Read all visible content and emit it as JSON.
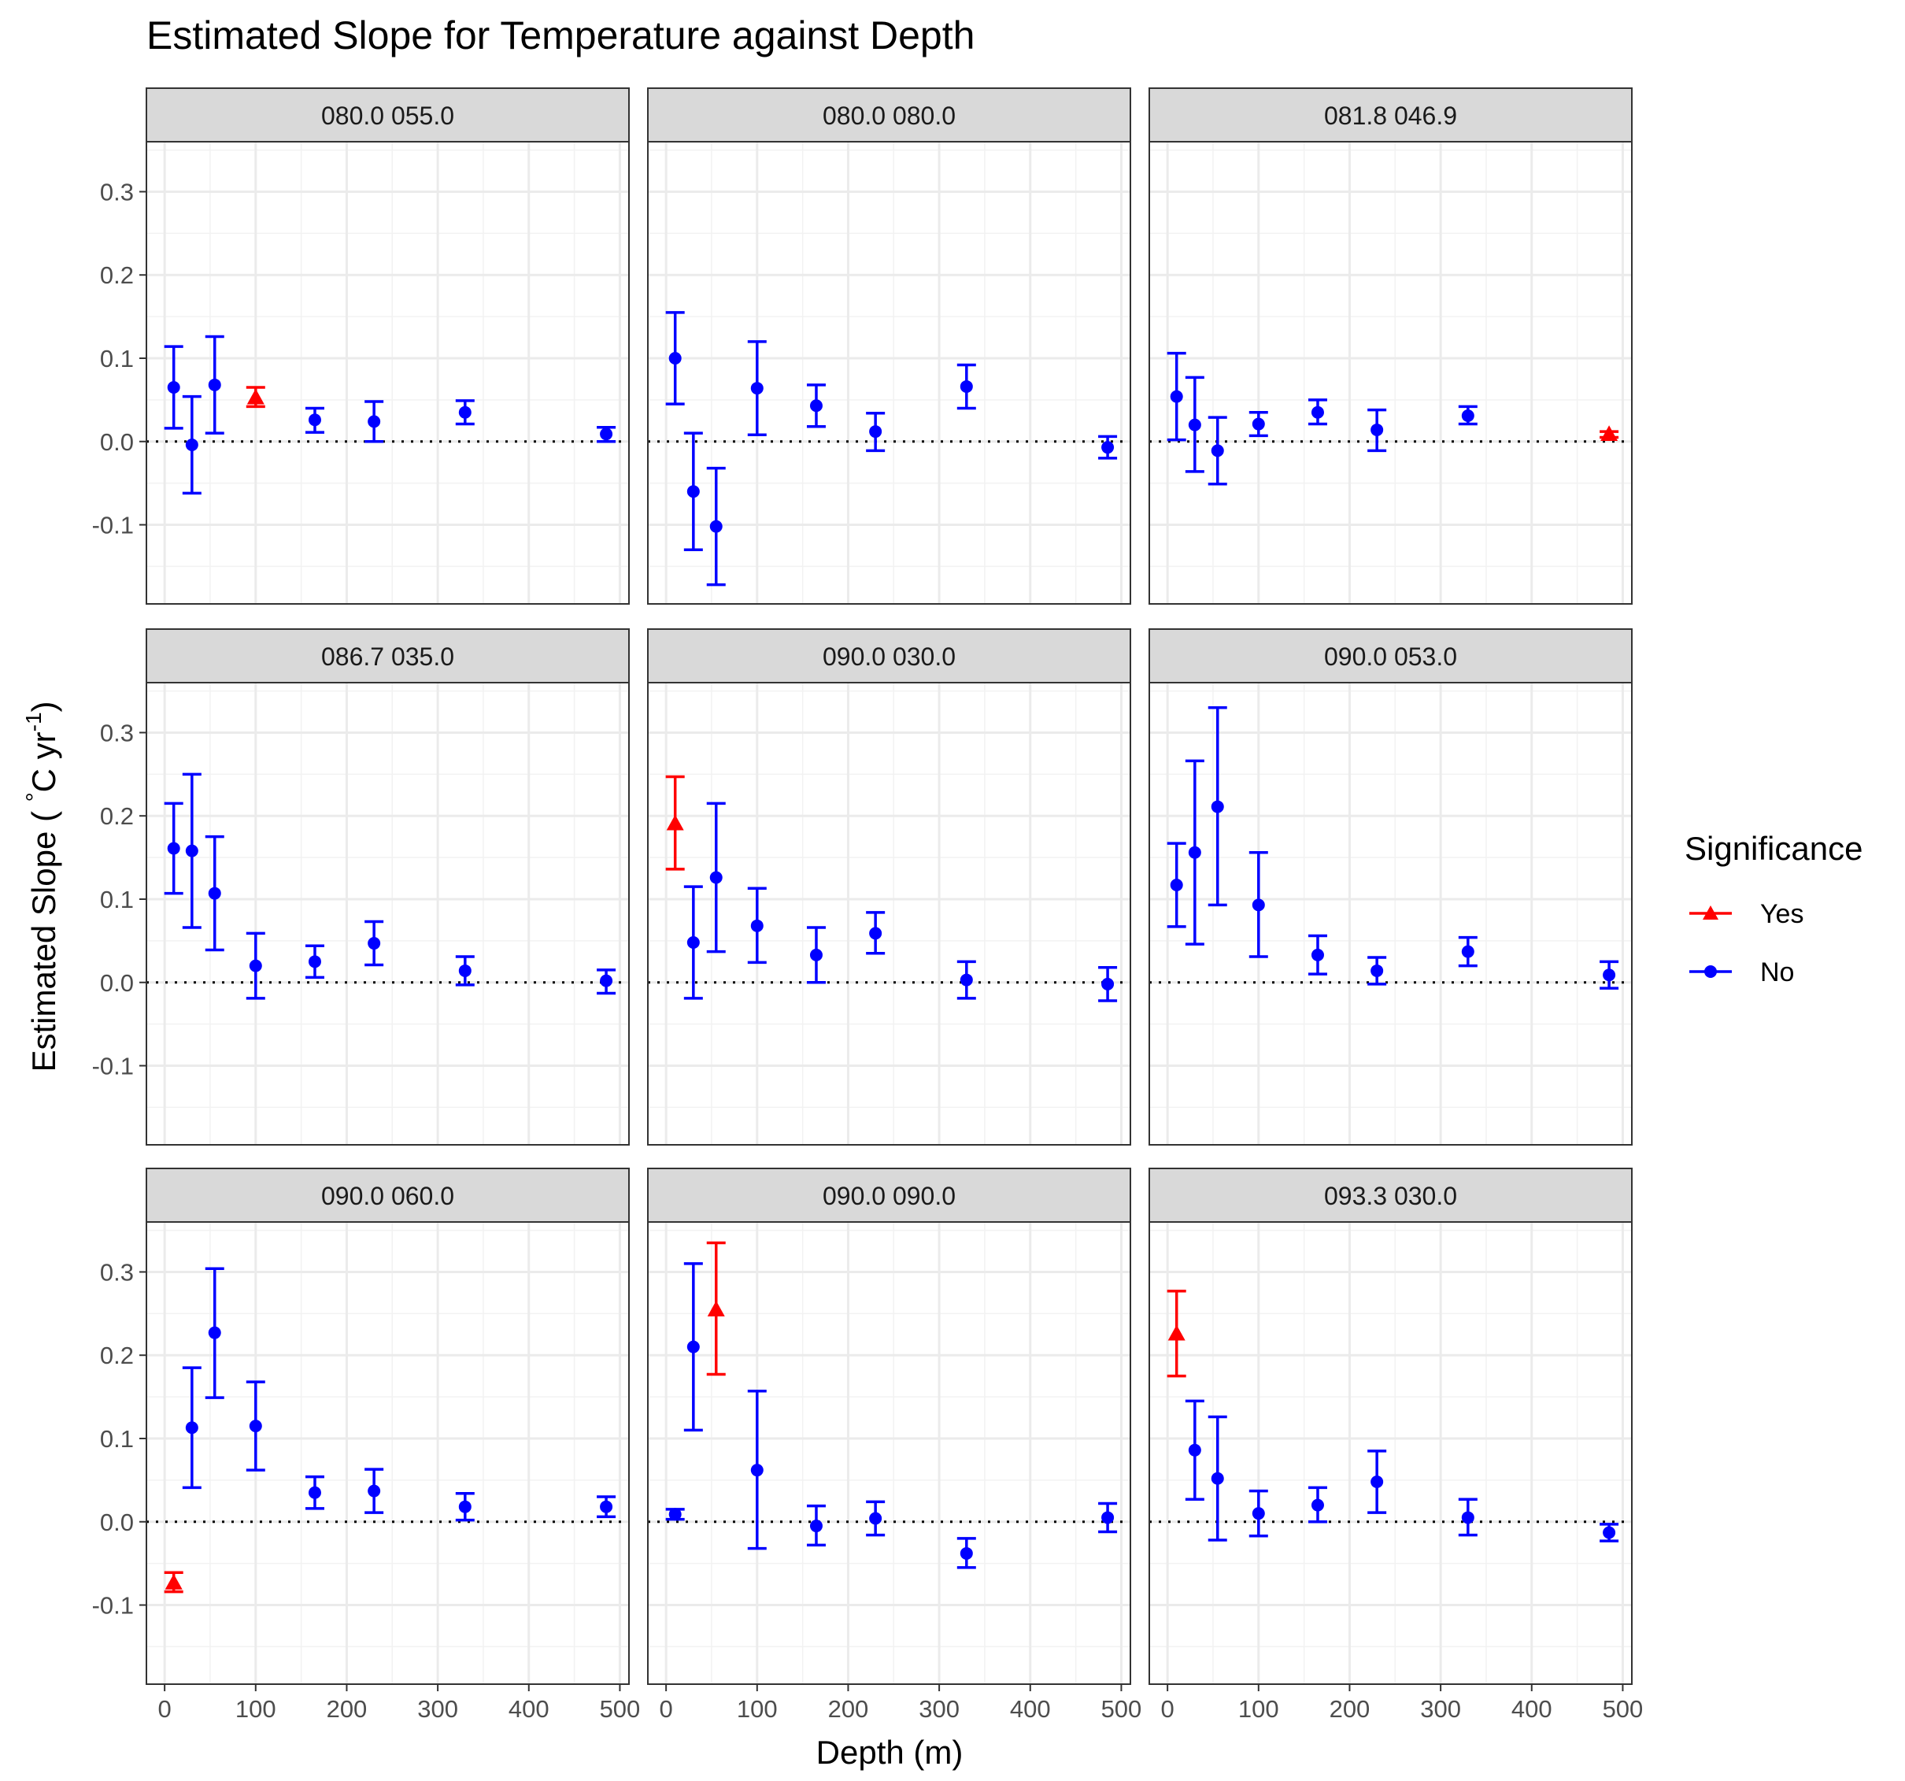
{
  "chart_data": {
    "type": "scatter",
    "title": "Estimated Slope for Temperature against Depth",
    "xlabel": "Depth (m)",
    "ylabel": {
      "main": "Estimated Slope ( ",
      "degree": "°",
      "unit_mid": "C yr",
      "superscript": "-1",
      "tail": ")"
    },
    "xlim": [
      -20,
      510
    ],
    "ylim": [
      -0.195,
      0.36
    ],
    "x_ticks": [
      0,
      100,
      200,
      300,
      400,
      500
    ],
    "x_tick_labels": [
      "0",
      "100",
      "200",
      "300",
      "400",
      "500"
    ],
    "y_ticks": [
      -0.1,
      0.0,
      0.1,
      0.2,
      0.3
    ],
    "y_tick_labels": [
      "-0.1",
      "0.0",
      "0.1",
      "0.2",
      "0.3"
    ],
    "reference_line": {
      "y": 0,
      "style": "dotted"
    },
    "grid": true,
    "legend": {
      "title": "Significance",
      "placement": "right",
      "entries": [
        {
          "label": "Yes",
          "color": "#ff0000",
          "shape": "triangle"
        },
        {
          "label": "No",
          "color": "#0000ff",
          "shape": "circle"
        }
      ]
    },
    "colors": {
      "Yes": "#ff0000",
      "No": "#0000ff"
    },
    "panels": [
      {
        "label": "080.0 055.0",
        "points": [
          {
            "x": 10,
            "y": 0.065,
            "lo": 0.016,
            "hi": 0.114,
            "sig": "No"
          },
          {
            "x": 30,
            "y": -0.004,
            "lo": -0.062,
            "hi": 0.054,
            "sig": "No"
          },
          {
            "x": 55,
            "y": 0.068,
            "lo": 0.01,
            "hi": 0.126,
            "sig": "No"
          },
          {
            "x": 100,
            "y": 0.053,
            "lo": 0.042,
            "hi": 0.065,
            "sig": "Yes"
          },
          {
            "x": 165,
            "y": 0.026,
            "lo": 0.011,
            "hi": 0.04,
            "sig": "No"
          },
          {
            "x": 230,
            "y": 0.024,
            "lo": 0.0,
            "hi": 0.048,
            "sig": "No"
          },
          {
            "x": 330,
            "y": 0.035,
            "lo": 0.021,
            "hi": 0.049,
            "sig": "No"
          },
          {
            "x": 485,
            "y": 0.009,
            "lo": 0.0,
            "hi": 0.017,
            "sig": "No"
          }
        ]
      },
      {
        "label": "080.0 080.0",
        "points": [
          {
            "x": 10,
            "y": 0.1,
            "lo": 0.045,
            "hi": 0.155,
            "sig": "No"
          },
          {
            "x": 30,
            "y": -0.06,
            "lo": -0.13,
            "hi": 0.01,
            "sig": "No"
          },
          {
            "x": 55,
            "y": -0.102,
            "lo": -0.172,
            "hi": -0.032,
            "sig": "No"
          },
          {
            "x": 100,
            "y": 0.064,
            "lo": 0.008,
            "hi": 0.12,
            "sig": "No"
          },
          {
            "x": 165,
            "y": 0.043,
            "lo": 0.018,
            "hi": 0.068,
            "sig": "No"
          },
          {
            "x": 230,
            "y": 0.012,
            "lo": -0.011,
            "hi": 0.034,
            "sig": "No"
          },
          {
            "x": 330,
            "y": 0.066,
            "lo": 0.04,
            "hi": 0.092,
            "sig": "No"
          },
          {
            "x": 485,
            "y": -0.007,
            "lo": -0.02,
            "hi": 0.006,
            "sig": "No"
          }
        ]
      },
      {
        "label": "081.8 046.9",
        "points": [
          {
            "x": 10,
            "y": 0.054,
            "lo": 0.002,
            "hi": 0.106,
            "sig": "No"
          },
          {
            "x": 30,
            "y": 0.02,
            "lo": -0.036,
            "hi": 0.077,
            "sig": "No"
          },
          {
            "x": 55,
            "y": -0.011,
            "lo": -0.051,
            "hi": 0.029,
            "sig": "No"
          },
          {
            "x": 100,
            "y": 0.021,
            "lo": 0.007,
            "hi": 0.035,
            "sig": "No"
          },
          {
            "x": 165,
            "y": 0.035,
            "lo": 0.021,
            "hi": 0.05,
            "sig": "No"
          },
          {
            "x": 230,
            "y": 0.014,
            "lo": -0.011,
            "hi": 0.038,
            "sig": "No"
          },
          {
            "x": 330,
            "y": 0.031,
            "lo": 0.021,
            "hi": 0.042,
            "sig": "No"
          },
          {
            "x": 485,
            "y": 0.009,
            "lo": 0.005,
            "hi": 0.012,
            "sig": "Yes"
          }
        ]
      },
      {
        "label": "086.7 035.0",
        "points": [
          {
            "x": 10,
            "y": 0.161,
            "lo": 0.107,
            "hi": 0.215,
            "sig": "No"
          },
          {
            "x": 30,
            "y": 0.158,
            "lo": 0.066,
            "hi": 0.25,
            "sig": "No"
          },
          {
            "x": 55,
            "y": 0.107,
            "lo": 0.039,
            "hi": 0.175,
            "sig": "No"
          },
          {
            "x": 100,
            "y": 0.02,
            "lo": -0.019,
            "hi": 0.059,
            "sig": "No"
          },
          {
            "x": 165,
            "y": 0.025,
            "lo": 0.006,
            "hi": 0.044,
            "sig": "No"
          },
          {
            "x": 230,
            "y": 0.047,
            "lo": 0.021,
            "hi": 0.073,
            "sig": "No"
          },
          {
            "x": 330,
            "y": 0.014,
            "lo": -0.003,
            "hi": 0.031,
            "sig": "No"
          },
          {
            "x": 485,
            "y": 0.002,
            "lo": -0.013,
            "hi": 0.015,
            "sig": "No"
          }
        ]
      },
      {
        "label": "090.0 030.0",
        "points": [
          {
            "x": 10,
            "y": 0.191,
            "lo": 0.136,
            "hi": 0.247,
            "sig": "Yes"
          },
          {
            "x": 30,
            "y": 0.048,
            "lo": -0.019,
            "hi": 0.115,
            "sig": "No"
          },
          {
            "x": 55,
            "y": 0.126,
            "lo": 0.037,
            "hi": 0.215,
            "sig": "No"
          },
          {
            "x": 100,
            "y": 0.068,
            "lo": 0.024,
            "hi": 0.113,
            "sig": "No"
          },
          {
            "x": 165,
            "y": 0.033,
            "lo": 0.0,
            "hi": 0.066,
            "sig": "No"
          },
          {
            "x": 230,
            "y": 0.059,
            "lo": 0.035,
            "hi": 0.084,
            "sig": "No"
          },
          {
            "x": 330,
            "y": 0.003,
            "lo": -0.019,
            "hi": 0.025,
            "sig": "No"
          },
          {
            "x": 485,
            "y": -0.002,
            "lo": -0.022,
            "hi": 0.018,
            "sig": "No"
          }
        ]
      },
      {
        "label": "090.0 053.0",
        "points": [
          {
            "x": 10,
            "y": 0.117,
            "lo": 0.067,
            "hi": 0.167,
            "sig": "No"
          },
          {
            "x": 30,
            "y": 0.156,
            "lo": 0.046,
            "hi": 0.266,
            "sig": "No"
          },
          {
            "x": 55,
            "y": 0.211,
            "lo": 0.093,
            "hi": 0.33,
            "sig": "No"
          },
          {
            "x": 100,
            "y": 0.093,
            "lo": 0.031,
            "hi": 0.156,
            "sig": "No"
          },
          {
            "x": 165,
            "y": 0.033,
            "lo": 0.01,
            "hi": 0.056,
            "sig": "No"
          },
          {
            "x": 230,
            "y": 0.014,
            "lo": -0.002,
            "hi": 0.03,
            "sig": "No"
          },
          {
            "x": 330,
            "y": 0.037,
            "lo": 0.02,
            "hi": 0.054,
            "sig": "No"
          },
          {
            "x": 485,
            "y": 0.009,
            "lo": -0.007,
            "hi": 0.025,
            "sig": "No"
          }
        ]
      },
      {
        "label": "090.0 060.0",
        "points": [
          {
            "x": 10,
            "y": -0.073,
            "lo": -0.084,
            "hi": -0.061,
            "sig": "Yes"
          },
          {
            "x": 30,
            "y": 0.113,
            "lo": 0.041,
            "hi": 0.185,
            "sig": "No"
          },
          {
            "x": 55,
            "y": 0.227,
            "lo": 0.149,
            "hi": 0.304,
            "sig": "No"
          },
          {
            "x": 100,
            "y": 0.115,
            "lo": 0.062,
            "hi": 0.168,
            "sig": "No"
          },
          {
            "x": 165,
            "y": 0.035,
            "lo": 0.016,
            "hi": 0.054,
            "sig": "No"
          },
          {
            "x": 230,
            "y": 0.037,
            "lo": 0.011,
            "hi": 0.063,
            "sig": "No"
          },
          {
            "x": 330,
            "y": 0.018,
            "lo": 0.002,
            "hi": 0.034,
            "sig": "No"
          },
          {
            "x": 485,
            "y": 0.018,
            "lo": 0.006,
            "hi": 0.03,
            "sig": "No"
          }
        ]
      },
      {
        "label": "090.0 090.0",
        "points": [
          {
            "x": 10,
            "y": 0.009,
            "lo": 0.003,
            "hi": 0.015,
            "sig": "No"
          },
          {
            "x": 30,
            "y": 0.21,
            "lo": 0.11,
            "hi": 0.31,
            "sig": "No"
          },
          {
            "x": 55,
            "y": 0.255,
            "lo": 0.177,
            "hi": 0.335,
            "sig": "Yes"
          },
          {
            "x": 100,
            "y": 0.062,
            "lo": -0.032,
            "hi": 0.157,
            "sig": "No"
          },
          {
            "x": 165,
            "y": -0.005,
            "lo": -0.028,
            "hi": 0.019,
            "sig": "No"
          },
          {
            "x": 230,
            "y": 0.004,
            "lo": -0.016,
            "hi": 0.024,
            "sig": "No"
          },
          {
            "x": 330,
            "y": -0.038,
            "lo": -0.055,
            "hi": -0.02,
            "sig": "No"
          },
          {
            "x": 485,
            "y": 0.005,
            "lo": -0.012,
            "hi": 0.022,
            "sig": "No"
          }
        ]
      },
      {
        "label": "093.3 030.0",
        "points": [
          {
            "x": 10,
            "y": 0.226,
            "lo": 0.175,
            "hi": 0.277,
            "sig": "Yes"
          },
          {
            "x": 30,
            "y": 0.086,
            "lo": 0.027,
            "hi": 0.145,
            "sig": "No"
          },
          {
            "x": 55,
            "y": 0.052,
            "lo": -0.022,
            "hi": 0.126,
            "sig": "No"
          },
          {
            "x": 100,
            "y": 0.01,
            "lo": -0.017,
            "hi": 0.037,
            "sig": "No"
          },
          {
            "x": 165,
            "y": 0.02,
            "lo": 0.0,
            "hi": 0.041,
            "sig": "No"
          },
          {
            "x": 230,
            "y": 0.048,
            "lo": 0.011,
            "hi": 0.085,
            "sig": "No"
          },
          {
            "x": 330,
            "y": 0.005,
            "lo": -0.016,
            "hi": 0.027,
            "sig": "No"
          },
          {
            "x": 485,
            "y": -0.013,
            "lo": -0.023,
            "hi": -0.003,
            "sig": "No"
          }
        ]
      }
    ]
  }
}
